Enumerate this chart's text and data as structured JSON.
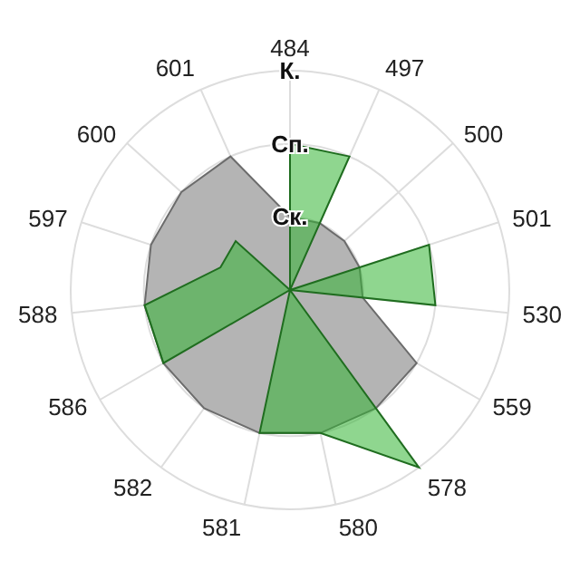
{
  "chart_data": {
    "type": "radar",
    "categories": [
      "484",
      "497",
      "500",
      "501",
      "530",
      "559",
      "578",
      "580",
      "581",
      "582",
      "586",
      "588",
      "597",
      "600",
      "601"
    ],
    "series": [
      {
        "color": "#b4b4b4",
        "values": [
          1,
          1,
          1,
          1,
          1,
          2,
          2,
          2,
          2,
          2,
          2,
          2,
          2,
          2,
          2
        ]
      },
      {
        "color": "#33b533",
        "values": [
          2,
          2,
          0,
          2,
          2,
          0,
          3,
          2,
          2,
          0,
          2,
          2,
          1,
          1,
          0
        ]
      }
    ],
    "ylim": [
      0,
      3
    ],
    "yticks": [
      {
        "value": 1,
        "label": "Ск."
      },
      {
        "value": 2,
        "label": "Сп."
      },
      {
        "value": 3,
        "label": "К."
      }
    ],
    "grid": true
  }
}
